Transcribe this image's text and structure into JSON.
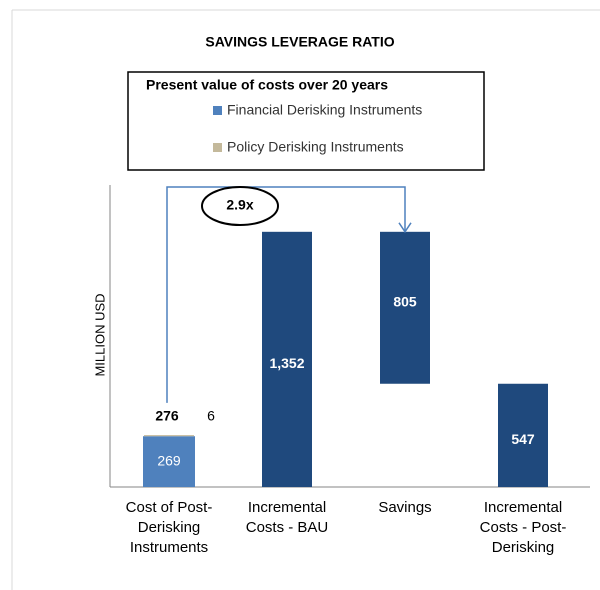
{
  "chart_data": {
    "type": "waterfall",
    "title": "SAVINGS LEVERAGE RATIO",
    "legend_title": "Present value of costs over 20 years",
    "y_label": "MILLION USD",
    "categories": [
      "Cost of Post-Derisking Instruments",
      "Incremental Costs - BAU",
      "Savings",
      "Incremental Costs - Post-Derisking"
    ],
    "series": [
      {
        "name": "Financial Derisking Instruments",
        "color": "#4f81bd",
        "values": [
          269,
          null,
          null,
          null
        ]
      },
      {
        "name": "Policy Derisking Instruments",
        "color": "#c4b99b",
        "values": [
          6,
          null,
          null,
          null
        ]
      }
    ],
    "total_values": [
      276,
      null,
      null,
      null
    ],
    "steps": {
      "color": "#1f497d",
      "values": [
        null,
        1352,
        805,
        547
      ],
      "value_labels": [
        null,
        "1,352",
        "805",
        "547"
      ],
      "measure": [
        null,
        "absolute",
        "decrease",
        "absolute"
      ]
    },
    "annotation": "2.9x",
    "ylim": [
      0,
      1600
    ]
  }
}
